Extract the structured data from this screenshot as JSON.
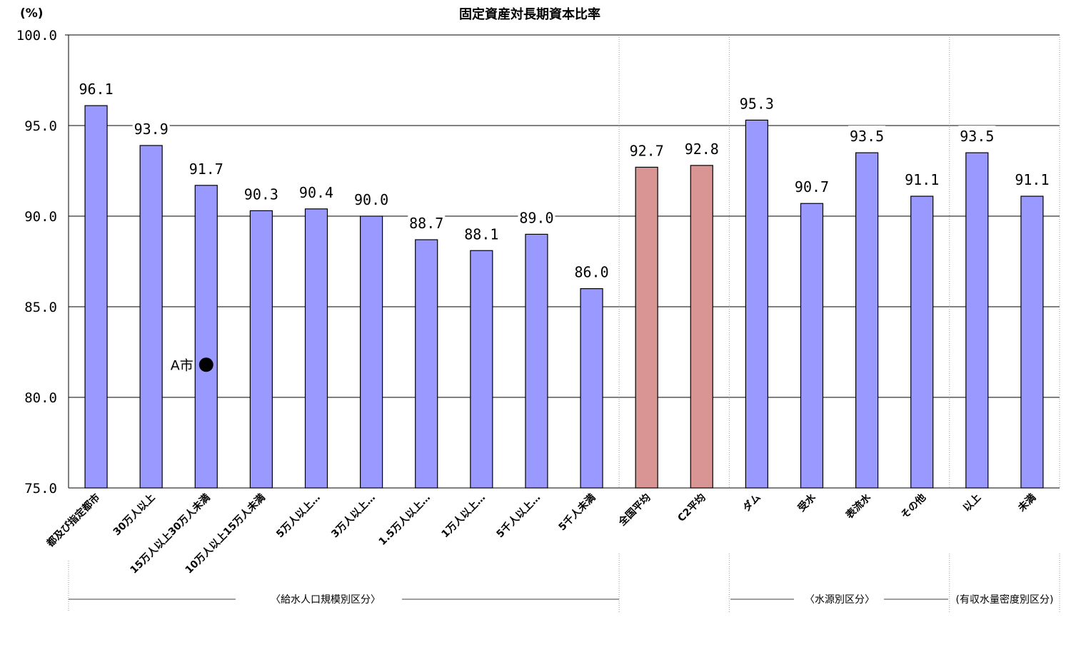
{
  "chart_data": {
    "type": "bar",
    "title": "固定資産対長期資本比率",
    "unit_label": "(%)",
    "ylim": [
      75,
      100
    ],
    "yticks": [
      "75.0",
      "80.0",
      "85.0",
      "90.0",
      "95.0",
      "100.0"
    ],
    "grid": true,
    "categories": [
      "都及び指定都市",
      "30万人以上",
      "15万人以上30万人未満",
      "10万人以上15万人未満",
      "5万人以上…",
      "3万人以上…",
      "1.5万人以上…",
      "1万人以上…",
      "5千人以上…",
      "5千人未満",
      "全国平均",
      "C2平均",
      "ダム",
      "受水",
      "表流水",
      "その他",
      "以上",
      "未満"
    ],
    "values": [
      96.1,
      93.9,
      91.7,
      90.3,
      90.4,
      90.0,
      88.7,
      88.1,
      89.0,
      86.0,
      92.7,
      92.8,
      95.3,
      90.7,
      93.5,
      91.1,
      93.5,
      91.1
    ],
    "value_labels": [
      "96.1",
      "93.9",
      "91.7",
      "90.3",
      "90.4",
      "90.0",
      "88.7",
      "88.1",
      "89.0",
      "86.0",
      "92.7",
      "92.8",
      "95.3",
      "90.7",
      "93.5",
      "91.1",
      "93.5",
      "91.1"
    ],
    "bar_colors": [
      "#9999ff",
      "#9999ff",
      "#9999ff",
      "#9999ff",
      "#9999ff",
      "#9999ff",
      "#9999ff",
      "#9999ff",
      "#9999ff",
      "#9999ff",
      "#d99594",
      "#d99594",
      "#9999ff",
      "#9999ff",
      "#9999ff",
      "#9999ff",
      "#9999ff",
      "#9999ff"
    ],
    "groups": [
      "〈給水人口規模別区分〉",
      "〈水源別区分〉",
      "(有収水量密度別区分)"
    ],
    "annotation": {
      "label": "A市",
      "category_index": 2,
      "value": 81.8
    }
  }
}
